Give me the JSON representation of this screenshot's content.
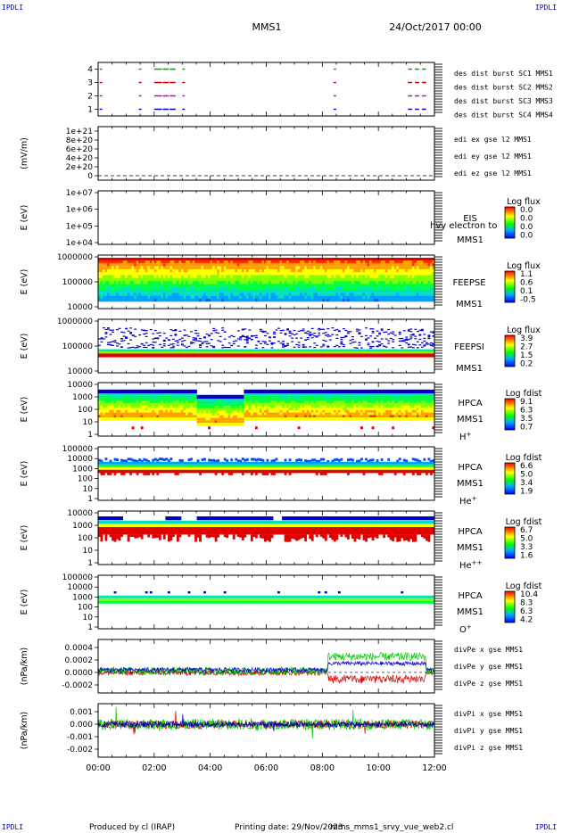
{
  "corners": {
    "tl": "IPDLI",
    "tr": "IPDLI",
    "bl": "IPDLI",
    "br": "IPDLI"
  },
  "header": {
    "mission": "MMS1",
    "date": "24/Oct/2017 00:00"
  },
  "footer": {
    "produced": "Produced by cl (IRAP)",
    "printing": "Printing date: 29/Nov/2023",
    "file": "mms_mms1_srvy_vue_web2.cl"
  },
  "chart_data": [
    {
      "type": "scatter",
      "id": "burst",
      "ylim": [
        0.5,
        4.5
      ],
      "yticks": [
        "1",
        "2",
        "3",
        "4"
      ],
      "series": [
        {
          "name": "des dist burst SC1 MMS1",
          "color": "#0000cc",
          "y": 1
        },
        {
          "name": "des dist burst SC2 MMS2",
          "color": "#cc00cc",
          "y": 2
        },
        {
          "name": "des dist burst SC3 MMS3",
          "color": "#cc0000",
          "y": 3
        },
        {
          "name": "des dist burst SC4 MMS4",
          "color": "#00aa00",
          "y": 4
        }
      ],
      "intervals_hours": [
        [
          0.05,
          0.1
        ],
        [
          1.45,
          1.5
        ],
        [
          2.0,
          2.2
        ],
        [
          2.3,
          2.45
        ],
        [
          2.55,
          2.7
        ],
        [
          3.0,
          3.03
        ],
        [
          8.4,
          8.45
        ],
        [
          11.05,
          11.15
        ],
        [
          11.3,
          11.4
        ],
        [
          11.55,
          11.65
        ]
      ]
    },
    {
      "type": "line",
      "id": "edi",
      "ylabel": "(mV/m)",
      "yticks": [
        "0",
        "2e+20",
        "4e+20",
        "6e+20",
        "8e+20",
        "1e+21"
      ],
      "ylim": [
        0,
        1e+21
      ],
      "series": [
        {
          "name": "edi ex gse l2 MMS1",
          "color": "#cc0000"
        },
        {
          "name": "edi ey gse l2 MMS1",
          "color": "#00aa00"
        },
        {
          "name": "edi ez gse l2 MMS1",
          "color": "#0000cc"
        }
      ]
    },
    {
      "type": "heatmap",
      "id": "eis",
      "ylabel": "E (eV)",
      "yticks": [
        "1e+04",
        "1e+05",
        "1e+06",
        "1e+07"
      ],
      "instrument": "EIS",
      "sat": "MMS1",
      "subtitle": "hvy electron to",
      "cbar_title": "Log flux",
      "cbar_ticks": [
        "0.0",
        "0.0",
        "0.0",
        "0.0"
      ]
    },
    {
      "type": "heatmap",
      "id": "feepse",
      "ylabel": "E (eV)",
      "yticks": [
        "10000",
        "100000",
        "1000000"
      ],
      "instrument": "FEEPSE",
      "sat": "MMS1",
      "cbar_title": "Log flux",
      "cbar_ticks": [
        "1.1",
        "0.6",
        "0.1",
        "-0.5"
      ]
    },
    {
      "type": "heatmap",
      "id": "feepsi",
      "ylabel": "E (eV)",
      "yticks": [
        "10000",
        "100000",
        "1000000"
      ],
      "instrument": "FEEPSI",
      "sat": "MMS1",
      "cbar_title": "Log flux",
      "cbar_ticks": [
        "3.9",
        "2.7",
        "1.5",
        "0.2"
      ]
    },
    {
      "type": "heatmap",
      "id": "hpca_h",
      "ylabel": "E (eV)",
      "yticks": [
        "1",
        "10",
        "100",
        "1000",
        "10000"
      ],
      "instrument": "HPCA",
      "sat": "MMS1",
      "species": "H",
      "charge": "+",
      "cbar_title": "Log fdist",
      "cbar_ticks": [
        "9.1",
        "6.3",
        "3.5",
        "0.7"
      ]
    },
    {
      "type": "heatmap",
      "id": "hpca_he",
      "ylabel": "E (eV)",
      "yticks": [
        "1",
        "10",
        "100",
        "1000",
        "10000",
        "100000"
      ],
      "instrument": "HPCA",
      "sat": "MMS1",
      "species": "He",
      "charge": "+",
      "cbar_title": "Log fdist",
      "cbar_ticks": [
        "6.6",
        "5.0",
        "3.4",
        "1.9"
      ]
    },
    {
      "type": "heatmap",
      "id": "hpca_he2",
      "ylabel": "E (eV)",
      "yticks": [
        "1",
        "10",
        "100",
        "1000",
        "10000"
      ],
      "instrument": "HPCA",
      "sat": "MMS1",
      "species": "He",
      "charge": "++",
      "cbar_title": "Log fdist",
      "cbar_ticks": [
        "6.7",
        "5.0",
        "3.3",
        "1.6"
      ]
    },
    {
      "type": "heatmap",
      "id": "hpca_o",
      "ylabel": "E (eV)",
      "yticks": [
        "1",
        "10",
        "100",
        "1000",
        "10000",
        "100000"
      ],
      "instrument": "HPCA",
      "sat": "MMS1",
      "species": "O",
      "charge": "+",
      "cbar_title": "Log fdist",
      "cbar_ticks": [
        "10.4",
        "8.3",
        "6.3",
        "4.2"
      ]
    },
    {
      "type": "line",
      "id": "divpe",
      "ylabel": "(nPa/km)",
      "yticks": [
        "-0.0002",
        "0.0000",
        "0.0002",
        "0.0004"
      ],
      "ylim": [
        -0.0003,
        0.00048
      ],
      "series": [
        {
          "name": "divPe x gse MMS1",
          "color": "#dd0000"
        },
        {
          "name": "divPe y gse MMS1",
          "color": "#00cc00"
        },
        {
          "name": "divPe z gse MMS1",
          "color": "#0000cc"
        }
      ]
    },
    {
      "type": "line",
      "id": "divpi",
      "ylabel": "(nPa/km)",
      "yticks": [
        "-0.002",
        "-0.001",
        "0.000",
        "0.001"
      ],
      "ylim": [
        -0.0027,
        0.0017
      ],
      "series": [
        {
          "name": "divPi x gse MMS1",
          "color": "#dd0000"
        },
        {
          "name": "divPi y gse MMS1",
          "color": "#00cc00"
        },
        {
          "name": "divPi z gse MMS1",
          "color": "#0000cc"
        }
      ]
    }
  ],
  "x_axis": {
    "ticks": [
      "00:00",
      "02:00",
      "04:00",
      "06:00",
      "08:00",
      "10:00",
      "12:00"
    ],
    "range_hours": [
      0,
      12
    ]
  }
}
